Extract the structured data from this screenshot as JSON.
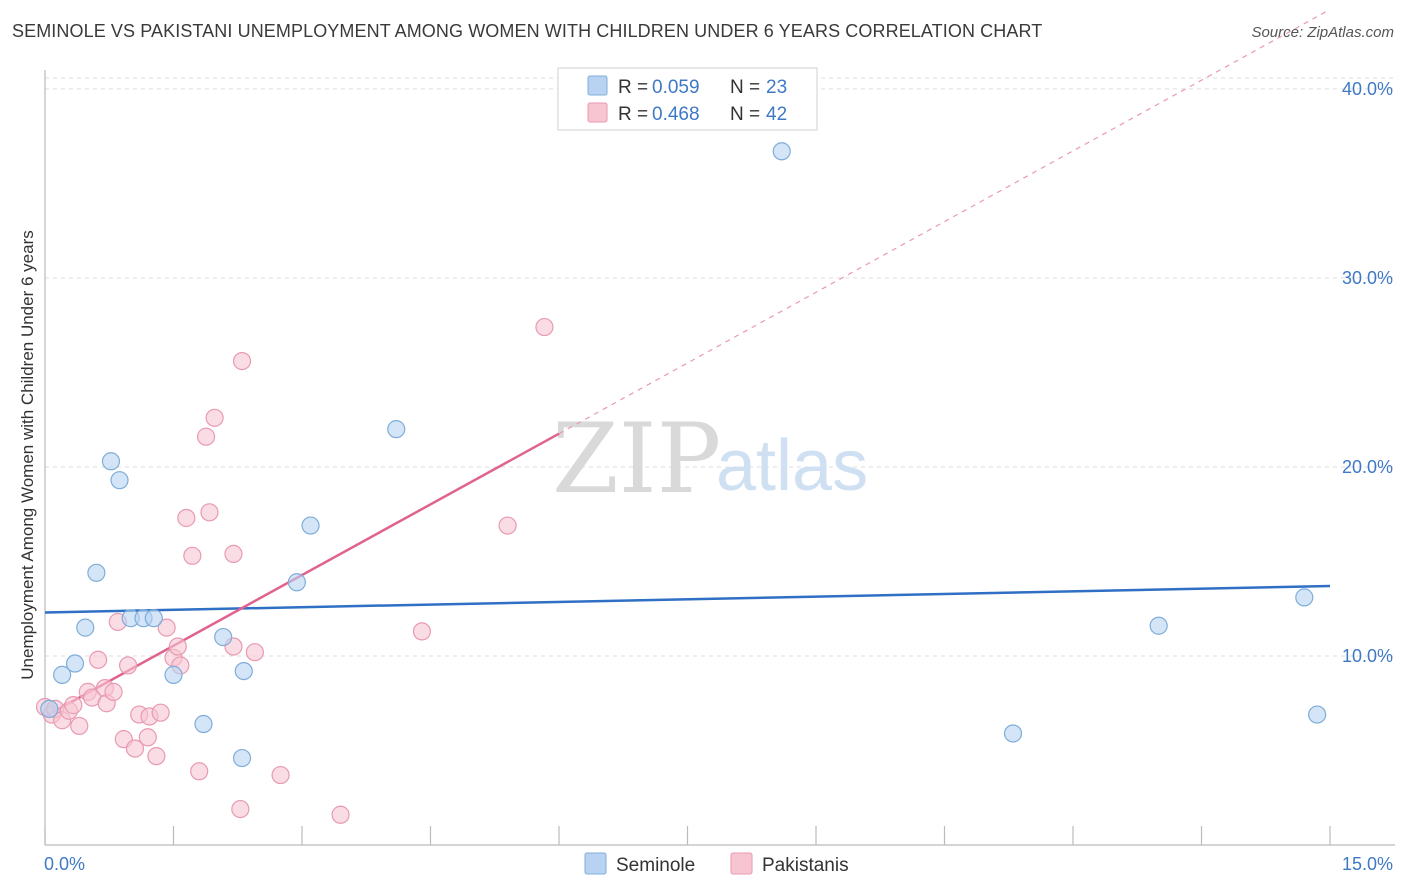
{
  "title": "SEMINOLE VS PAKISTANI UNEMPLOYMENT AMONG WOMEN WITH CHILDREN UNDER 6 YEARS CORRELATION CHART",
  "source": "Source: ZipAtlas.com",
  "watermark": {
    "zip": "ZIP",
    "atlas": "atlas"
  },
  "legend": {
    "r_label": "R =",
    "n_label": "N =",
    "entries": [
      {
        "r": "0.059",
        "n": "23"
      },
      {
        "r": "0.468",
        "n": "42"
      }
    ]
  },
  "colors": {
    "seminole_fill": "#b8d3f2",
    "seminole_stroke": "#7fadd9",
    "seminole_line": "#2f6fc4",
    "pakistani_fill": "#f7c4d2",
    "pakistani_stroke": "#e89ab1",
    "pakistani_line": "#e0628f"
  },
  "chart_data": {
    "type": "scatter",
    "xlabel": "",
    "ylabel": "Unemployment Among Women with Children Under 6 years",
    "xlim": [
      0,
      15
    ],
    "ylim": [
      0,
      41
    ],
    "x_tick_labels": [
      "0.0%",
      "15.0%"
    ],
    "y_ticks": [
      10,
      20,
      30,
      40
    ],
    "y_tick_labels": [
      "10.0%",
      "20.0%",
      "30.0%",
      "40.0%"
    ],
    "series": [
      {
        "name": "Seminole",
        "points": [
          [
            0.05,
            7.2
          ],
          [
            0.2,
            9.0
          ],
          [
            0.35,
            9.6
          ],
          [
            0.47,
            11.5
          ],
          [
            0.6,
            14.4
          ],
          [
            0.77,
            20.3
          ],
          [
            0.87,
            19.3
          ],
          [
            1.0,
            12.0
          ],
          [
            1.15,
            12.0
          ],
          [
            1.27,
            12.0
          ],
          [
            1.5,
            9.0
          ],
          [
            1.85,
            6.4
          ],
          [
            2.08,
            11.0
          ],
          [
            2.3,
            4.6
          ],
          [
            2.32,
            9.2
          ],
          [
            2.94,
            13.9
          ],
          [
            3.1,
            16.9
          ],
          [
            4.1,
            22.0
          ],
          [
            8.6,
            36.7
          ],
          [
            11.3,
            5.9
          ],
          [
            13.0,
            11.6
          ],
          [
            14.7,
            13.1
          ],
          [
            14.85,
            6.9
          ]
        ],
        "trend": {
          "x": [
            0,
            15
          ],
          "y": [
            12.3,
            13.7
          ]
        }
      },
      {
        "name": "Pakistanis",
        "points": [
          [
            0.0,
            7.3
          ],
          [
            0.08,
            6.9
          ],
          [
            0.12,
            7.2
          ],
          [
            0.2,
            6.6
          ],
          [
            0.28,
            7.1
          ],
          [
            0.33,
            7.4
          ],
          [
            0.4,
            6.3
          ],
          [
            0.5,
            8.1
          ],
          [
            0.55,
            7.8
          ],
          [
            0.62,
            9.8
          ],
          [
            0.7,
            8.3
          ],
          [
            0.72,
            7.5
          ],
          [
            0.8,
            8.1
          ],
          [
            0.85,
            11.8
          ],
          [
            0.92,
            5.6
          ],
          [
            0.97,
            9.5
          ],
          [
            1.05,
            5.1
          ],
          [
            1.1,
            6.9
          ],
          [
            1.2,
            5.7
          ],
          [
            1.22,
            6.8
          ],
          [
            1.3,
            4.7
          ],
          [
            1.35,
            7.0
          ],
          [
            1.42,
            11.5
          ],
          [
            1.5,
            9.9
          ],
          [
            1.55,
            10.5
          ],
          [
            1.58,
            9.5
          ],
          [
            1.65,
            17.3
          ],
          [
            1.72,
            15.3
          ],
          [
            1.8,
            3.9
          ],
          [
            1.88,
            21.6
          ],
          [
            1.92,
            17.6
          ],
          [
            1.98,
            22.6
          ],
          [
            2.2,
            15.4
          ],
          [
            2.2,
            10.5
          ],
          [
            2.28,
            1.9
          ],
          [
            2.3,
            25.6
          ],
          [
            2.45,
            10.2
          ],
          [
            2.75,
            3.7
          ],
          [
            3.45,
            1.6
          ],
          [
            4.4,
            11.3
          ],
          [
            5.4,
            16.9
          ],
          [
            5.83,
            27.4
          ]
        ],
        "trend": {
          "x": [
            0,
            15
          ],
          "y": [
            6.8,
            44.2
          ],
          "solid_until_x": 6.0
        }
      }
    ]
  },
  "bottom_legend": [
    "Seminole",
    "Pakistanis"
  ]
}
